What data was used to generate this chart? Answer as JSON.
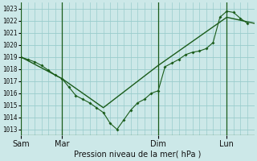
{
  "background_color": "#cce8e8",
  "grid_color": "#99cccc",
  "line_color": "#1a5c1a",
  "xlabel": "Pression niveau de la mer( hPa )",
  "ylim": [
    1012.5,
    1023.5
  ],
  "yticks": [
    1013,
    1014,
    1015,
    1016,
    1017,
    1018,
    1019,
    1020,
    1021,
    1022,
    1023
  ],
  "xtick_labels": [
    "Sam",
    "Mar",
    "Dim",
    "Lun"
  ],
  "xtick_x": [
    0,
    3,
    10,
    15
  ],
  "vline_x": [
    0,
    3,
    10,
    15
  ],
  "xlim": [
    0,
    17
  ],
  "series1_x": [
    0,
    0.5,
    1,
    1.5,
    2,
    2.5,
    3,
    3.5,
    4,
    4.5,
    5,
    5.5,
    6,
    6.5,
    7,
    7.5,
    8,
    8.5,
    9,
    9.5,
    10,
    10.5,
    11,
    11.5,
    12,
    12.5,
    13,
    13.5,
    14,
    14.5,
    15,
    15.5,
    16,
    16.5
  ],
  "series1_y": [
    1019.0,
    1018.8,
    1018.6,
    1018.3,
    1017.9,
    1017.5,
    1017.2,
    1016.5,
    1015.8,
    1015.5,
    1015.2,
    1014.8,
    1014.4,
    1013.5,
    1013.0,
    1013.8,
    1014.6,
    1015.2,
    1015.5,
    1016.0,
    1016.2,
    1018.2,
    1018.5,
    1018.8,
    1019.2,
    1019.4,
    1019.5,
    1019.7,
    1020.2,
    1022.3,
    1022.8,
    1022.7,
    1022.2,
    1021.8
  ],
  "series2_x": [
    0,
    3,
    6,
    10,
    15,
    17
  ],
  "series2_y": [
    1019.0,
    1017.2,
    1014.8,
    1018.3,
    1022.3,
    1021.8
  ],
  "marker_x": [
    0,
    0.5,
    1,
    1.5,
    2,
    2.5,
    3,
    3.5,
    4,
    4.5,
    5,
    5.5,
    6,
    6.5,
    7,
    7.5,
    8,
    8.5,
    9,
    9.5,
    10,
    10.5,
    11,
    11.5,
    12,
    12.5,
    13,
    13.5,
    14,
    14.5,
    15,
    15.5,
    16,
    16.5
  ],
  "marker_y": [
    1019.0,
    1018.8,
    1018.6,
    1018.3,
    1017.9,
    1017.5,
    1017.2,
    1016.5,
    1015.8,
    1015.5,
    1015.2,
    1014.8,
    1014.4,
    1013.5,
    1013.0,
    1013.8,
    1014.6,
    1015.2,
    1015.5,
    1016.0,
    1016.2,
    1018.2,
    1018.5,
    1018.8,
    1019.2,
    1019.4,
    1019.5,
    1019.7,
    1020.2,
    1022.3,
    1022.8,
    1022.7,
    1022.2,
    1021.8
  ]
}
